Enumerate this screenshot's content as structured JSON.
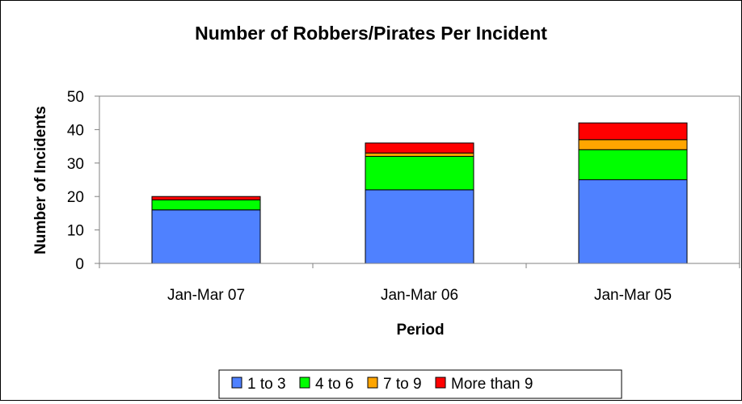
{
  "chart_data": {
    "type": "bar",
    "stacked": true,
    "title": "Number of Robbers/Pirates Per Incident",
    "xlabel": "Period",
    "ylabel": "Number of Incidents",
    "ylim": [
      0,
      50
    ],
    "yticks": [
      0,
      10,
      20,
      30,
      40,
      50
    ],
    "grid": false,
    "legend_position": "bottom",
    "categories": [
      "Jan-Mar 07",
      "Jan-Mar 06",
      "Jan-Mar 05"
    ],
    "series": [
      {
        "name": "1 to 3",
        "color": "#4f81ff",
        "values": [
          16,
          22,
          25
        ]
      },
      {
        "name": "4 to 6",
        "color": "#00ff00",
        "values": [
          3,
          10,
          9
        ]
      },
      {
        "name": "7 to 9",
        "color": "#ffa500",
        "values": [
          0,
          1,
          3
        ]
      },
      {
        "name": "More than 9",
        "color": "#ff0000",
        "values": [
          1,
          3,
          5
        ]
      }
    ]
  }
}
